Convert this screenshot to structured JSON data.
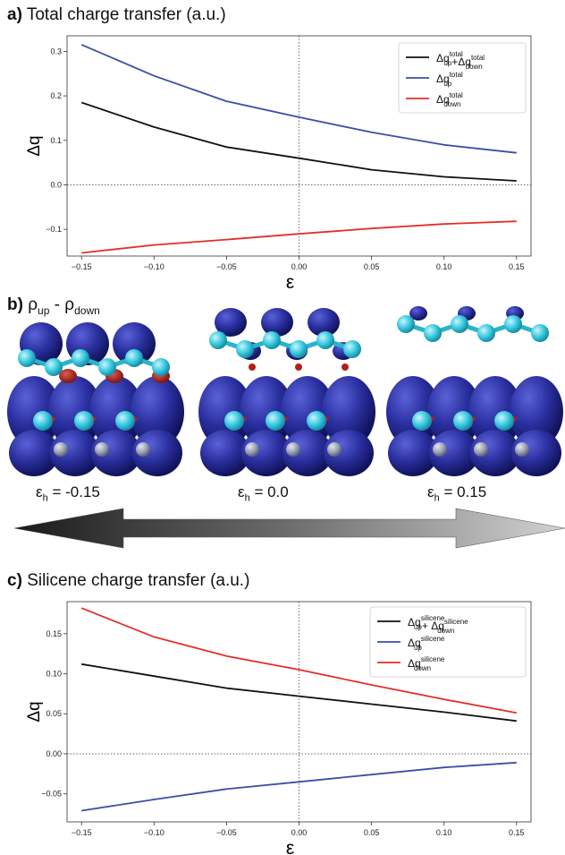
{
  "panels": {
    "a": {
      "letter": "a)",
      "title": "Total charge transfer (a.u.)"
    },
    "b": {
      "letter": "b)",
      "title_parts": [
        "ρ",
        "up",
        " - ρ",
        "down"
      ]
    },
    "c": {
      "letter": "c)",
      "title": "Silicene charge transfer  (a.u.)"
    }
  },
  "strain_labels": [
    {
      "symbol": "ε",
      "sub": "h",
      "text": "=  -0.15"
    },
    {
      "symbol": "ε",
      "sub": "h",
      "text": "=  0.0"
    },
    {
      "symbol": "ε",
      "sub": "h",
      "text": "=  0.15"
    }
  ],
  "colors": {
    "black": "#111111",
    "blue": "#3a4fa6",
    "red": "#e0302a",
    "isosurface_blue": "#2a2f9e",
    "isosurface_red": "#b0201a",
    "atom_cyan": "#35c8df",
    "atom_gray": "#9aa0b4"
  },
  "chart_data": [
    {
      "type": "line",
      "ylabel": "Δq",
      "xlabel": "ε",
      "xlim": [
        -0.16,
        0.16
      ],
      "ylim": [
        -0.16,
        0.335
      ],
      "xticks": [
        -0.15,
        -0.1,
        -0.05,
        0.0,
        0.05,
        0.1,
        0.15
      ],
      "xtick_labels": [
        "−0.15",
        "−0.10",
        "−0.05",
        "0.00",
        "0.05",
        "0.10",
        "0.15"
      ],
      "yticks": [
        -0.1,
        0.0,
        0.1,
        0.2,
        0.3
      ],
      "ytick_labels": [
        "−0.1",
        "0.0",
        "0.1",
        "0.2",
        "0.3"
      ],
      "x": [
        -0.15,
        -0.1,
        -0.05,
        0.0,
        0.05,
        0.1,
        0.15
      ],
      "legend_position": "top-right",
      "reference_lines": {
        "x": 0,
        "y": 0
      },
      "series": [
        {
          "legend": {
            "base": "Δq",
            "sup": "total",
            "sub": "up",
            "sup2": "total",
            "sub2": "down",
            "join": "+Δq"
          },
          "color": "black",
          "values": [
            0.185,
            0.13,
            0.085,
            0.06,
            0.034,
            0.018,
            0.009
          ]
        },
        {
          "legend": {
            "base": "Δq",
            "sup": "total",
            "sub": "up"
          },
          "color": "blue",
          "values": [
            0.315,
            0.245,
            0.188,
            0.152,
            0.118,
            0.09,
            0.072
          ]
        },
        {
          "legend": {
            "base": "Δq",
            "sup": "total",
            "sub": "down"
          },
          "color": "red",
          "values": [
            -0.153,
            -0.135,
            -0.123,
            -0.11,
            -0.098,
            -0.088,
            -0.082
          ]
        }
      ]
    },
    {
      "type": "line",
      "ylabel": "Δq",
      "xlabel": "ε",
      "xlim": [
        -0.16,
        0.16
      ],
      "ylim": [
        -0.085,
        0.19
      ],
      "xticks": [
        -0.15,
        -0.1,
        -0.05,
        0.0,
        0.05,
        0.1,
        0.15
      ],
      "xtick_labels": [
        "−0.15",
        "−0.10",
        "−0.05",
        "0.00",
        "0.05",
        "0.10",
        "0.15"
      ],
      "yticks": [
        -0.05,
        0.0,
        0.05,
        0.1,
        0.15
      ],
      "ytick_labels": [
        "−0.05",
        "0.00",
        "0.05",
        "0.10",
        "0.15"
      ],
      "x": [
        -0.15,
        -0.1,
        -0.05,
        0.0,
        0.05,
        0.1,
        0.15
      ],
      "legend_position": "top-right",
      "reference_lines": {
        "x": 0,
        "y": 0
      },
      "series": [
        {
          "legend": {
            "base": "Δq",
            "sup": "silicene",
            "sub": "up",
            "sup2": "silicene",
            "sub2": "down",
            "join": "+ Δq"
          },
          "color": "black",
          "values": [
            0.112,
            0.097,
            0.082,
            0.072,
            0.062,
            0.052,
            0.041
          ]
        },
        {
          "legend": {
            "base": "Δq",
            "sup": "silicene",
            "sub": "up"
          },
          "color": "blue",
          "values": [
            -0.071,
            -0.057,
            -0.044,
            -0.035,
            -0.026,
            -0.017,
            -0.011
          ]
        },
        {
          "legend": {
            "base": "Δq",
            "sup": "silicene",
            "sub": "down"
          },
          "color": "red",
          "values": [
            0.182,
            0.146,
            0.122,
            0.105,
            0.086,
            0.068,
            0.051
          ]
        }
      ]
    }
  ]
}
